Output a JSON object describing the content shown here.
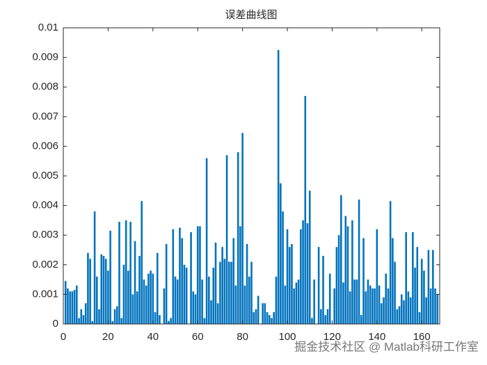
{
  "chart_data": {
    "type": "bar",
    "title": "误差曲线图",
    "x": [
      1,
      2,
      3,
      4,
      5,
      6,
      7,
      8,
      9,
      10,
      11,
      12,
      13,
      14,
      15,
      16,
      17,
      18,
      19,
      20,
      21,
      22,
      23,
      24,
      25,
      26,
      27,
      28,
      29,
      30,
      31,
      32,
      33,
      34,
      35,
      36,
      37,
      38,
      39,
      40,
      41,
      42,
      43,
      44,
      45,
      46,
      47,
      48,
      49,
      50,
      51,
      52,
      53,
      54,
      55,
      56,
      57,
      58,
      59,
      60,
      61,
      62,
      63,
      64,
      65,
      66,
      67,
      68,
      69,
      70,
      71,
      72,
      73,
      74,
      75,
      76,
      77,
      78,
      79,
      80,
      81,
      82,
      83,
      84,
      85,
      86,
      87,
      88,
      89,
      90,
      91,
      92,
      93,
      94,
      95,
      96,
      97,
      98,
      99,
      100,
      101,
      102,
      103,
      104,
      105,
      106,
      107,
      108,
      109,
      110,
      111,
      112,
      113,
      114,
      115,
      116,
      117,
      118,
      119,
      120,
      121,
      122,
      123,
      124,
      125,
      126,
      127,
      128,
      129,
      130,
      131,
      132,
      133,
      134,
      135,
      136,
      137,
      138,
      139,
      140,
      141,
      142,
      143,
      144,
      145,
      146,
      147,
      148,
      149,
      150,
      151,
      152,
      153,
      154,
      155,
      156,
      157,
      158,
      159,
      160,
      161,
      162,
      163,
      164,
      165,
      166,
      167
    ],
    "values": [
      0.00145,
      0.0012,
      0.0011,
      0.0011,
      0.00115,
      0.0013,
      0.0002,
      0.0005,
      0.0003,
      0.0007,
      0.0024,
      0.0022,
      0.0001,
      0.0038,
      0.0016,
      0.0005,
      0.00235,
      0.0023,
      0.0022,
      0.0018,
      0.00315,
      0.0001,
      0.0005,
      0.0006,
      0.00345,
      0.0002,
      0.002,
      0.0035,
      0.0018,
      0.00345,
      0.001,
      0.0028,
      0.0011,
      0.0023,
      0.00415,
      0.0015,
      0.0013,
      0.0017,
      0.0018,
      0.0017,
      0.0004,
      0.0024,
      0.0003,
      0,
      0.0012,
      0.0027,
      0.0001,
      0.0002,
      0.0032,
      0.0016,
      0.0015,
      0.00325,
      0.0029,
      0.002,
      0.0019,
      0,
      0.0031,
      0.0011,
      0.001,
      0.0033,
      0.0033,
      0.0015,
      0.0002,
      0.0056,
      0.0016,
      0.0008,
      0.0019,
      0.00275,
      0.0007,
      0.0021,
      0.0026,
      0.0022,
      0.0057,
      0.0021,
      0.0021,
      0.0029,
      0.0013,
      0.0058,
      0.0033,
      0.00645,
      0.0013,
      0.0027,
      0.0016,
      0.0021,
      0.0004,
      0.0005,
      0.00095,
      0,
      0.0007,
      0.0007,
      0.0004,
      0.0003,
      0.0002,
      0.0004,
      0.0016,
      0.00925,
      0.00475,
      0.0038,
      0.0013,
      0.0032,
      0.0026,
      0.0027,
      0.0012,
      0.0014,
      0.0015,
      0.0032,
      0.0035,
      0.0077,
      0.0034,
      0.0045,
      0.0002,
      0.0015,
      0,
      0.0026,
      0.0005,
      0.0023,
      0.0003,
      0.0005,
      0.0017,
      0,
      0.0012,
      0.0026,
      0.003,
      0.00435,
      0.0014,
      0.00365,
      0.0033,
      0.0011,
      0.0035,
      0.0015,
      0.0015,
      0.0042,
      0.0003,
      0.0029,
      0.0011,
      0.0015,
      0.0013,
      0.0012,
      0.0012,
      0.0032,
      0.0013,
      0.0007,
      0.0009,
      0.0017,
      0.0012,
      0.00415,
      0.0029,
      0.0021,
      0.0005,
      0.0006,
      0.001,
      0.0008,
      0.0031,
      0.0011,
      0.0009,
      0.0031,
      0.0019,
      0.0026,
      0.0004,
      0.0022,
      0.0018,
      0.0009,
      0.0025,
      0.0012,
      0.0025,
      0.0012,
      0.001
    ],
    "color": "#0072bd",
    "xlim": [
      0,
      168
    ],
    "xticks": [
      0,
      20,
      40,
      60,
      80,
      100,
      120,
      140,
      160
    ],
    "ylim": [
      0,
      0.01
    ],
    "yticks": [
      0,
      0.001,
      0.002,
      0.003,
      0.004,
      0.005,
      0.006,
      0.007,
      0.008,
      0.009,
      0.01
    ],
    "watermark": "掘金技术社区 @ Matlab科研工作室"
  }
}
